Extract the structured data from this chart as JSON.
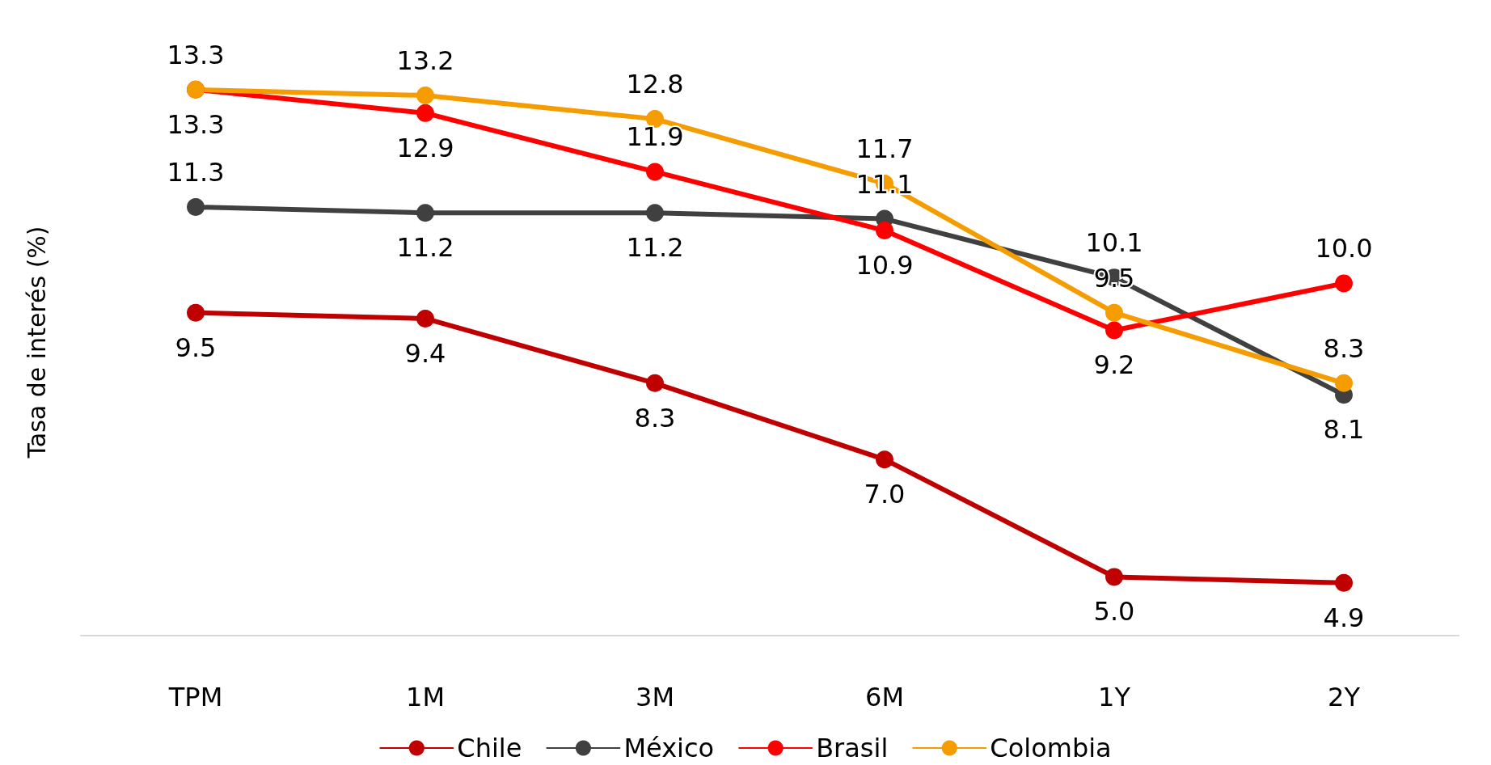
{
  "chart_data": {
    "type": "line",
    "ylabel": "Tasa de interés (%)",
    "categories": [
      "TPM",
      "1M",
      "3M",
      "6M",
      "1Y",
      "2Y"
    ],
    "series": [
      {
        "name": "Chile",
        "color": "#c00000",
        "values": [
          9.5,
          9.4,
          8.3,
          7.0,
          5.0,
          4.9
        ],
        "value_labels": [
          "9.5",
          "9.4",
          "8.3",
          "7.0",
          "5.0",
          "4.9"
        ]
      },
      {
        "name": "México",
        "color": "#404040",
        "values": [
          11.3,
          11.2,
          11.2,
          11.1,
          10.1,
          8.1
        ],
        "value_labels": [
          "11.3",
          "11.2",
          "11.2",
          "11.1",
          "10.1",
          "8.1"
        ]
      },
      {
        "name": "Brasil",
        "color": "#ff0000",
        "values": [
          13.3,
          12.9,
          11.9,
          10.9,
          9.2,
          10.0
        ],
        "value_labels": [
          "13.3",
          "12.9",
          "11.9",
          "10.9",
          "9.2",
          "10.0"
        ]
      },
      {
        "name": "Colombia",
        "color": "#f59c00",
        "values": [
          13.3,
          13.2,
          12.8,
          11.7,
          9.5,
          8.3
        ],
        "value_labels": [
          "13.3",
          "13.2",
          "12.8",
          "11.7",
          "9.5",
          "8.3"
        ]
      }
    ],
    "legend": "bottom",
    "grid": false,
    "marker": "circle",
    "line_style": "solid"
  }
}
